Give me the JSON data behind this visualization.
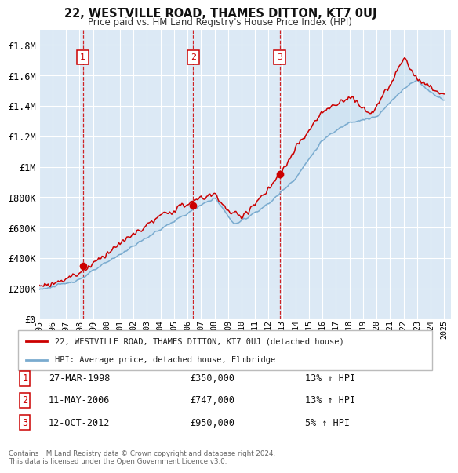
{
  "title": "22, WESTVILLE ROAD, THAMES DITTON, KT7 0UJ",
  "subtitle": "Price paid vs. HM Land Registry's House Price Index (HPI)",
  "background_color": "#ffffff",
  "plot_bg_color": "#dce9f5",
  "grid_color": "#ffffff",
  "ylim": [
    0,
    1900000
  ],
  "yticks": [
    0,
    200000,
    400000,
    600000,
    800000,
    1000000,
    1200000,
    1400000,
    1600000,
    1800000
  ],
  "ytick_labels": [
    "£0",
    "£200K",
    "£400K",
    "£600K",
    "£800K",
    "£1M",
    "£1.2M",
    "£1.4M",
    "£1.6M",
    "£1.8M"
  ],
  "sale_prices": [
    350000,
    747000,
    950000
  ],
  "sale_labels": [
    "1",
    "2",
    "3"
  ],
  "sale_label_display": [
    "27-MAR-1998",
    "11-MAY-2006",
    "12-OCT-2012"
  ],
  "sale_price_display": [
    "£350,000",
    "£747,000",
    "£950,000"
  ],
  "sale_hpi_pct": [
    "13% ↑ HPI",
    "13% ↑ HPI",
    "5% ↑ HPI"
  ],
  "legend_line1": "22, WESTVILLE ROAD, THAMES DITTON, KT7 0UJ (detached house)",
  "legend_line2": "HPI: Average price, detached house, Elmbridge",
  "footnote": "Contains HM Land Registry data © Crown copyright and database right 2024.\nThis data is licensed under the Open Government Licence v3.0.",
  "line_color_red": "#cc0000",
  "line_color_blue": "#7aabcf",
  "fill_color_blue": "#c5dff0",
  "dashed_line_color": "#cc0000"
}
